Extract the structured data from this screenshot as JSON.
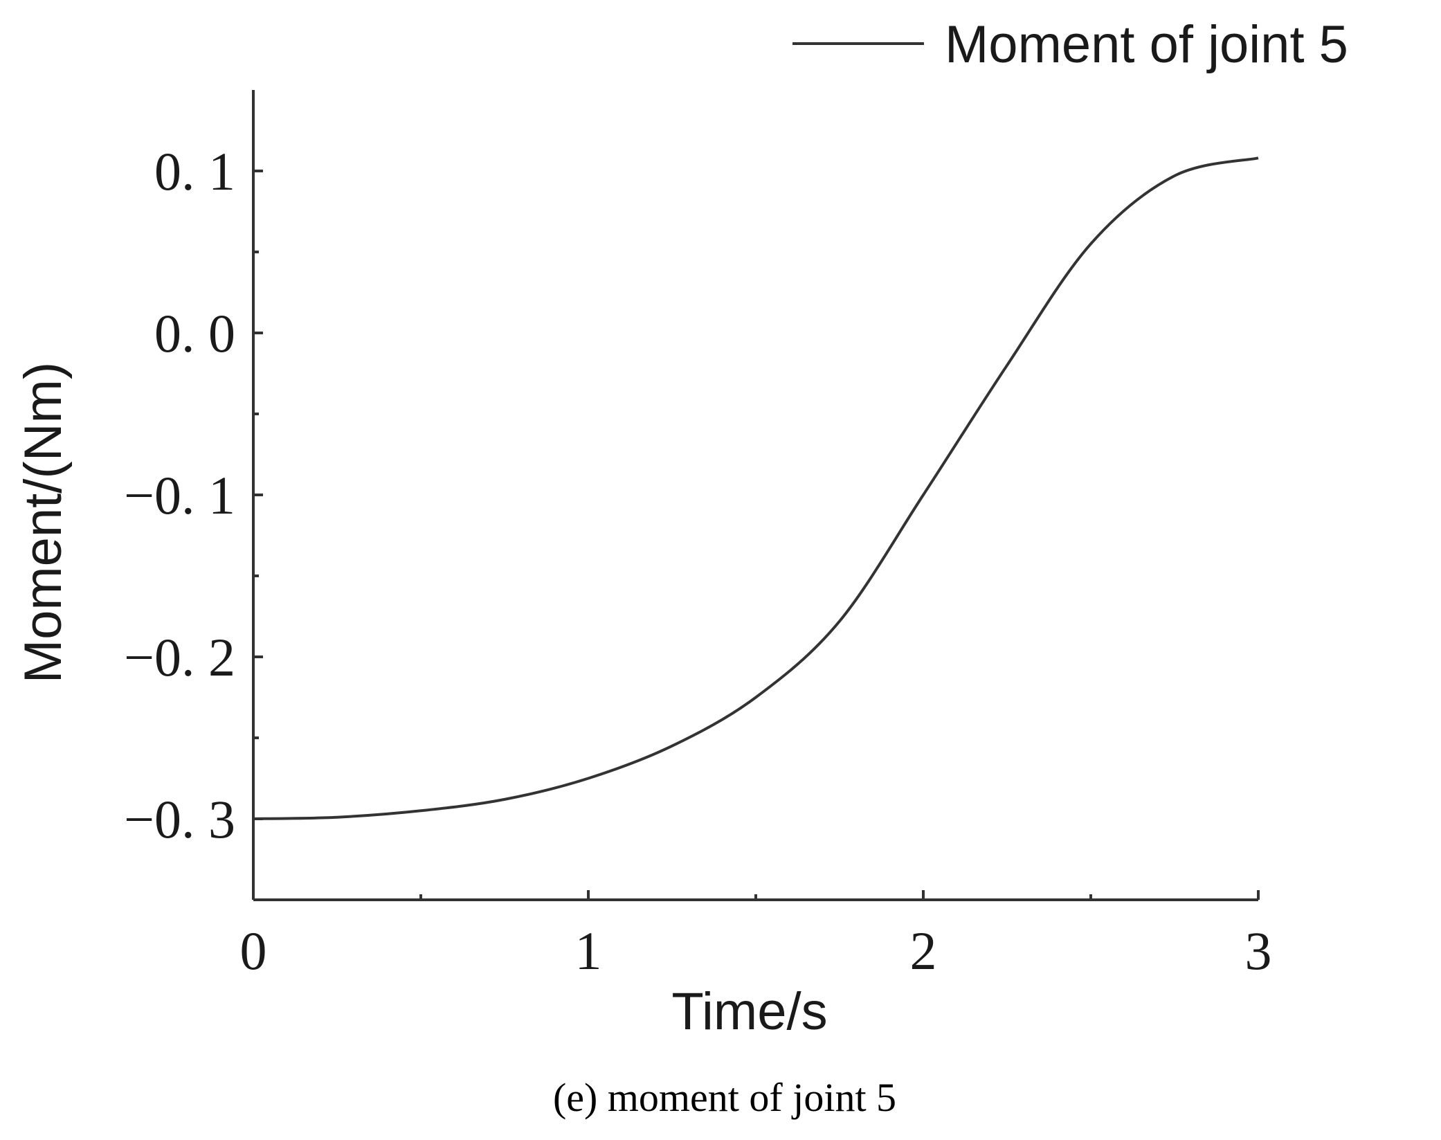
{
  "chart_data": {
    "type": "line",
    "xlabel": "Time/s",
    "ylabel": "Moment/(Nm)",
    "xlim": [
      0,
      3
    ],
    "ylim": [
      -0.35,
      0.15
    ],
    "x_ticks": [
      0,
      1,
      2,
      3
    ],
    "x_tick_labels": [
      "0",
      "1",
      "2",
      "3"
    ],
    "x_minor_ticks": [
      0.5,
      1.5,
      2.5
    ],
    "y_ticks": [
      -0.3,
      -0.2,
      -0.1,
      0.0,
      0.1
    ],
    "y_tick_labels": [
      "−0. 3",
      "−0. 2",
      "−0. 1",
      "0. 0",
      "0. 1"
    ],
    "y_minor_ticks": [
      -0.25,
      -0.15,
      -0.05,
      0.05
    ],
    "grid": false,
    "legend_position": "top-right",
    "series": [
      {
        "name": "Moment of joint 5",
        "color": "#333333",
        "x": [
          0,
          0.25,
          0.5,
          0.75,
          1.0,
          1.25,
          1.5,
          1.75,
          2.0,
          2.25,
          2.5,
          2.75,
          3.0
        ],
        "y": [
          -0.3,
          -0.299,
          -0.295,
          -0.288,
          -0.275,
          -0.255,
          -0.225,
          -0.178,
          -0.1,
          -0.02,
          0.055,
          0.097,
          0.108
        ]
      }
    ]
  },
  "caption": "(e) moment of joint 5"
}
